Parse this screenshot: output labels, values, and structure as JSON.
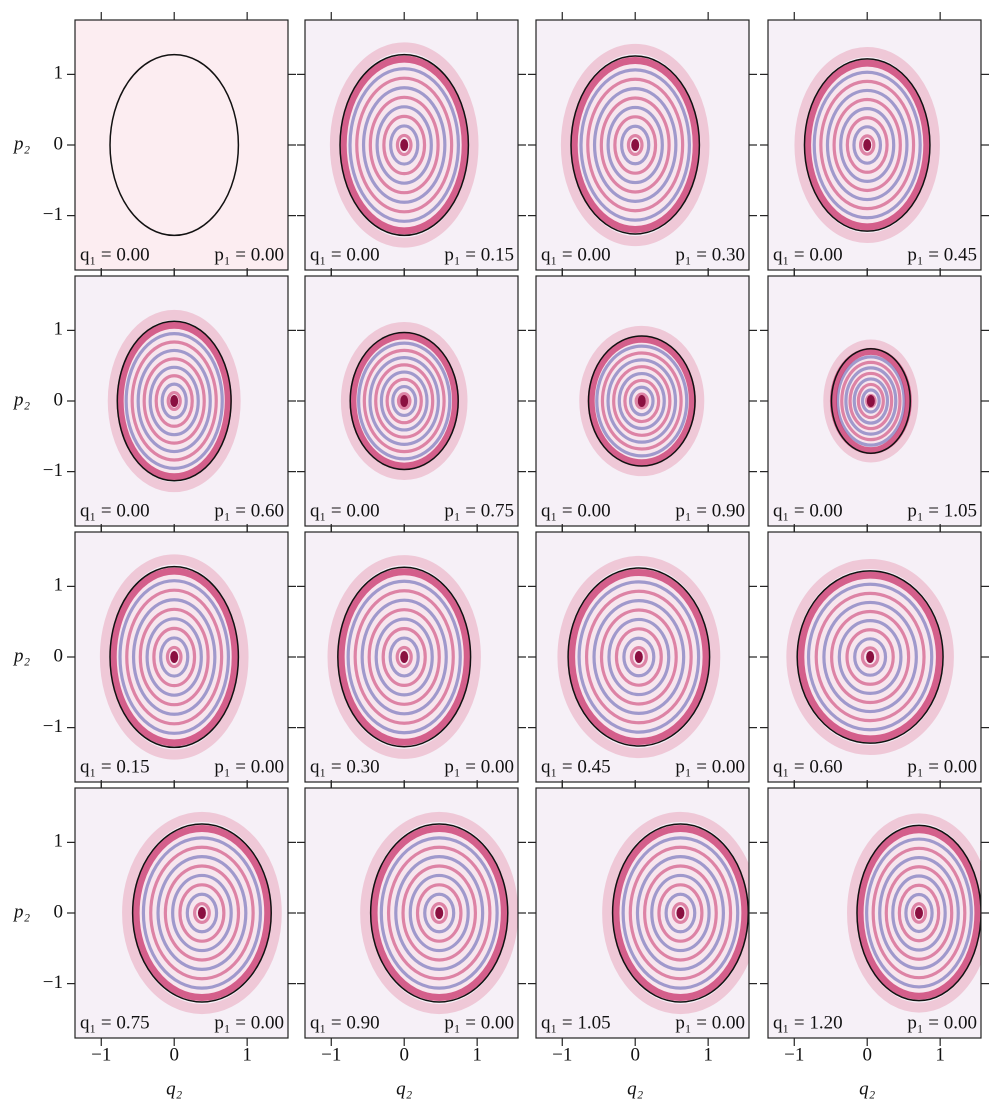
{
  "chart_data": [
    {
      "type": "phase-space",
      "ylabel": "p₂",
      "annotations": [
        "q₁ = 0.00",
        "p₁ = 0.00"
      ],
      "ellipse": {
        "cx": 0,
        "cy": 0,
        "rx": 0.88,
        "ry": 1.28
      },
      "xlim": [
        -1.36,
        1.56
      ],
      "ylim": [
        -1.77,
        1.77
      ],
      "xticks": [
        {
          "value": -1,
          "label": "−1"
        },
        0,
        1
      ],
      "yticks": [
        {
          "value": -1,
          "label": "−1"
        },
        0,
        1
      ]
    },
    {
      "type": "phase-space",
      "annotations": [
        "q₁ = 0.00",
        "p₁ = 0.15"
      ],
      "ellipse": {
        "cx": 0,
        "cy": 0,
        "rx": 0.88,
        "ry": 1.28
      },
      "xlim": [
        -1.36,
        1.56
      ],
      "ylim": [
        -1.77,
        1.77
      ],
      "xticks": [
        {
          "value": -1,
          "label": "−1"
        },
        0,
        1
      ],
      "yticks": [
        {
          "value": -1,
          "label": "−1"
        },
        0,
        1
      ]
    },
    {
      "type": "phase-space",
      "annotations": [
        "q₁ = 0.00",
        "p₁ = 0.30"
      ],
      "ellipse": {
        "cx": 0,
        "cy": 0,
        "rx": 0.88,
        "ry": 1.26
      },
      "xlim": [
        -1.36,
        1.56
      ],
      "ylim": [
        -1.77,
        1.77
      ],
      "xticks": [
        {
          "value": -1,
          "label": "−1"
        },
        0,
        1
      ],
      "yticks": [
        {
          "value": -1,
          "label": "−1"
        },
        0,
        1
      ]
    },
    {
      "type": "phase-space",
      "annotations": [
        "q₁ = 0.00",
        "p₁ = 0.45"
      ],
      "ellipse": {
        "cx": 0,
        "cy": 0,
        "rx": 0.86,
        "ry": 1.22
      },
      "xlim": [
        -1.36,
        1.56
      ],
      "ylim": [
        -1.77,
        1.77
      ],
      "xticks": [
        {
          "value": -1,
          "label": "−1"
        },
        0,
        1
      ],
      "yticks": [
        {
          "value": -1,
          "label": "−1"
        },
        0,
        1
      ]
    },
    {
      "type": "phase-space",
      "ylabel": "p₂",
      "annotations": [
        "q₁ = 0.00",
        "p₁ = 0.60"
      ],
      "ellipse": {
        "cx": 0,
        "cy": 0,
        "rx": 0.78,
        "ry": 1.13
      },
      "xlim": [
        -1.36,
        1.56
      ],
      "ylim": [
        -1.77,
        1.77
      ],
      "xticks": [
        {
          "value": -1,
          "label": "−1"
        },
        0,
        1
      ],
      "yticks": [
        {
          "value": -1,
          "label": "−1"
        },
        0,
        1
      ]
    },
    {
      "type": "phase-space",
      "annotations": [
        "q₁ = 0.00",
        "p₁ = 0.75"
      ],
      "ellipse": {
        "cx": 0,
        "cy": 0,
        "rx": 0.74,
        "ry": 0.97
      },
      "xlim": [
        -1.36,
        1.56
      ],
      "ylim": [
        -1.77,
        1.77
      ],
      "xticks": [
        {
          "value": -1,
          "label": "−1"
        },
        0,
        1
      ],
      "yticks": [
        {
          "value": -1,
          "label": "−1"
        },
        0,
        1
      ]
    },
    {
      "type": "phase-space",
      "annotations": [
        "q₁ = 0.00",
        "p₁ = 0.90"
      ],
      "ellipse": {
        "cx": 0.09,
        "cy": 0,
        "rx": 0.73,
        "ry": 0.92
      },
      "xlim": [
        -1.36,
        1.56
      ],
      "ylim": [
        -1.77,
        1.77
      ],
      "xticks": [
        {
          "value": -1,
          "label": "−1"
        },
        0,
        1
      ],
      "yticks": [
        {
          "value": -1,
          "label": "−1"
        },
        0,
        1
      ]
    },
    {
      "type": "phase-space",
      "annotations": [
        "q₁ = 0.00",
        "p₁ = 1.05"
      ],
      "ellipse": {
        "cx": 0.05,
        "cy": 0,
        "rx": 0.54,
        "ry": 0.74
      },
      "xlim": [
        -1.36,
        1.56
      ],
      "ylim": [
        -1.77,
        1.77
      ],
      "xticks": [
        {
          "value": -1,
          "label": "−1"
        },
        0,
        1
      ],
      "yticks": [
        {
          "value": -1,
          "label": "−1"
        },
        0,
        1
      ]
    },
    {
      "type": "phase-space",
      "ylabel": "p₂",
      "annotations": [
        "q₁ = 0.15",
        "p₁ = 0.00"
      ],
      "ellipse": {
        "cx": 0,
        "cy": 0,
        "rx": 0.88,
        "ry": 1.28
      },
      "xlim": [
        -1.36,
        1.56
      ],
      "ylim": [
        -1.77,
        1.77
      ],
      "xticks": [
        {
          "value": -1,
          "label": "−1"
        },
        0,
        1
      ],
      "yticks": [
        {
          "value": -1,
          "label": "−1"
        },
        0,
        1
      ]
    },
    {
      "type": "phase-space",
      "annotations": [
        "q₁ = 0.30",
        "p₁ = 0.00"
      ],
      "ellipse": {
        "cx": 0,
        "cy": 0,
        "rx": 0.91,
        "ry": 1.27
      },
      "xlim": [
        -1.36,
        1.56
      ],
      "ylim": [
        -1.77,
        1.77
      ],
      "xticks": [
        {
          "value": -1,
          "label": "−1"
        },
        0,
        1
      ],
      "yticks": [
        {
          "value": -1,
          "label": "−1"
        },
        0,
        1
      ]
    },
    {
      "type": "phase-space",
      "annotations": [
        "q₁ = 0.45",
        "p₁ = 0.00"
      ],
      "ellipse": {
        "cx": 0.05,
        "cy": 0,
        "rx": 0.97,
        "ry": 1.26
      },
      "xlim": [
        -1.36,
        1.56
      ],
      "ylim": [
        -1.77,
        1.77
      ],
      "xticks": [
        {
          "value": -1,
          "label": "−1"
        },
        0,
        1
      ],
      "yticks": [
        {
          "value": -1,
          "label": "−1"
        },
        0,
        1
      ]
    },
    {
      "type": "phase-space",
      "annotations": [
        "q₁ = 0.60",
        "p₁ = 0.00"
      ],
      "ellipse": {
        "cx": 0.04,
        "cy": 0,
        "rx": 1.0,
        "ry": 1.22
      },
      "xlim": [
        -1.36,
        1.56
      ],
      "ylim": [
        -1.77,
        1.77
      ],
      "xticks": [
        {
          "value": -1,
          "label": "−1"
        },
        0,
        1
      ],
      "yticks": [
        {
          "value": -1,
          "label": "−1"
        },
        0,
        1
      ]
    },
    {
      "type": "phase-space",
      "ylabel": "p₂",
      "xlabel": "q₂",
      "annotations": [
        "q₁ = 0.75",
        "p₁ = 0.00"
      ],
      "ellipse": {
        "cx": 0.38,
        "cy": 0,
        "rx": 0.95,
        "ry": 1.26
      },
      "xlim": [
        -1.36,
        1.56
      ],
      "ylim": [
        -1.77,
        1.77
      ],
      "xticks": [
        {
          "value": -1,
          "label": "−1"
        },
        0,
        1
      ],
      "yticks": [
        {
          "value": -1,
          "label": "−1"
        },
        0,
        1
      ]
    },
    {
      "type": "phase-space",
      "xlabel": "q₂",
      "annotations": [
        "q₁ = 0.90",
        "p₁ = 0.00"
      ],
      "ellipse": {
        "cx": 0.48,
        "cy": 0,
        "rx": 0.94,
        "ry": 1.26
      },
      "xlim": [
        -1.36,
        1.56
      ],
      "ylim": [
        -1.77,
        1.77
      ],
      "xticks": [
        {
          "value": -1,
          "label": "−1"
        },
        0,
        1
      ],
      "yticks": [
        {
          "value": -1,
          "label": "−1"
        },
        0,
        1
      ]
    },
    {
      "type": "phase-space",
      "xlabel": "q₂",
      "annotations": [
        "q₁ = 1.05",
        "p₁ = 0.00"
      ],
      "ellipse": {
        "cx": 0.62,
        "cy": 0,
        "rx": 0.93,
        "ry": 1.26
      },
      "xlim": [
        -1.36,
        1.56
      ],
      "ylim": [
        -1.77,
        1.77
      ],
      "xticks": [
        {
          "value": -1,
          "label": "−1"
        },
        0,
        1
      ],
      "yticks": [
        {
          "value": -1,
          "label": "−1"
        },
        0,
        1
      ]
    },
    {
      "type": "phase-space",
      "xlabel": "q₂",
      "annotations": [
        "q₁ = 1.20",
        "p₁ = 0.00"
      ],
      "ellipse": {
        "cx": 0.71,
        "cy": 0,
        "rx": 0.85,
        "ry": 1.24
      },
      "xlim": [
        -1.36,
        1.56
      ],
      "ylim": [
        -1.77,
        1.77
      ],
      "xticks": [
        {
          "value": -1,
          "label": "−1"
        },
        0,
        1
      ],
      "yticks": [
        {
          "value": -1,
          "label": "−1"
        },
        0,
        1
      ]
    }
  ]
}
